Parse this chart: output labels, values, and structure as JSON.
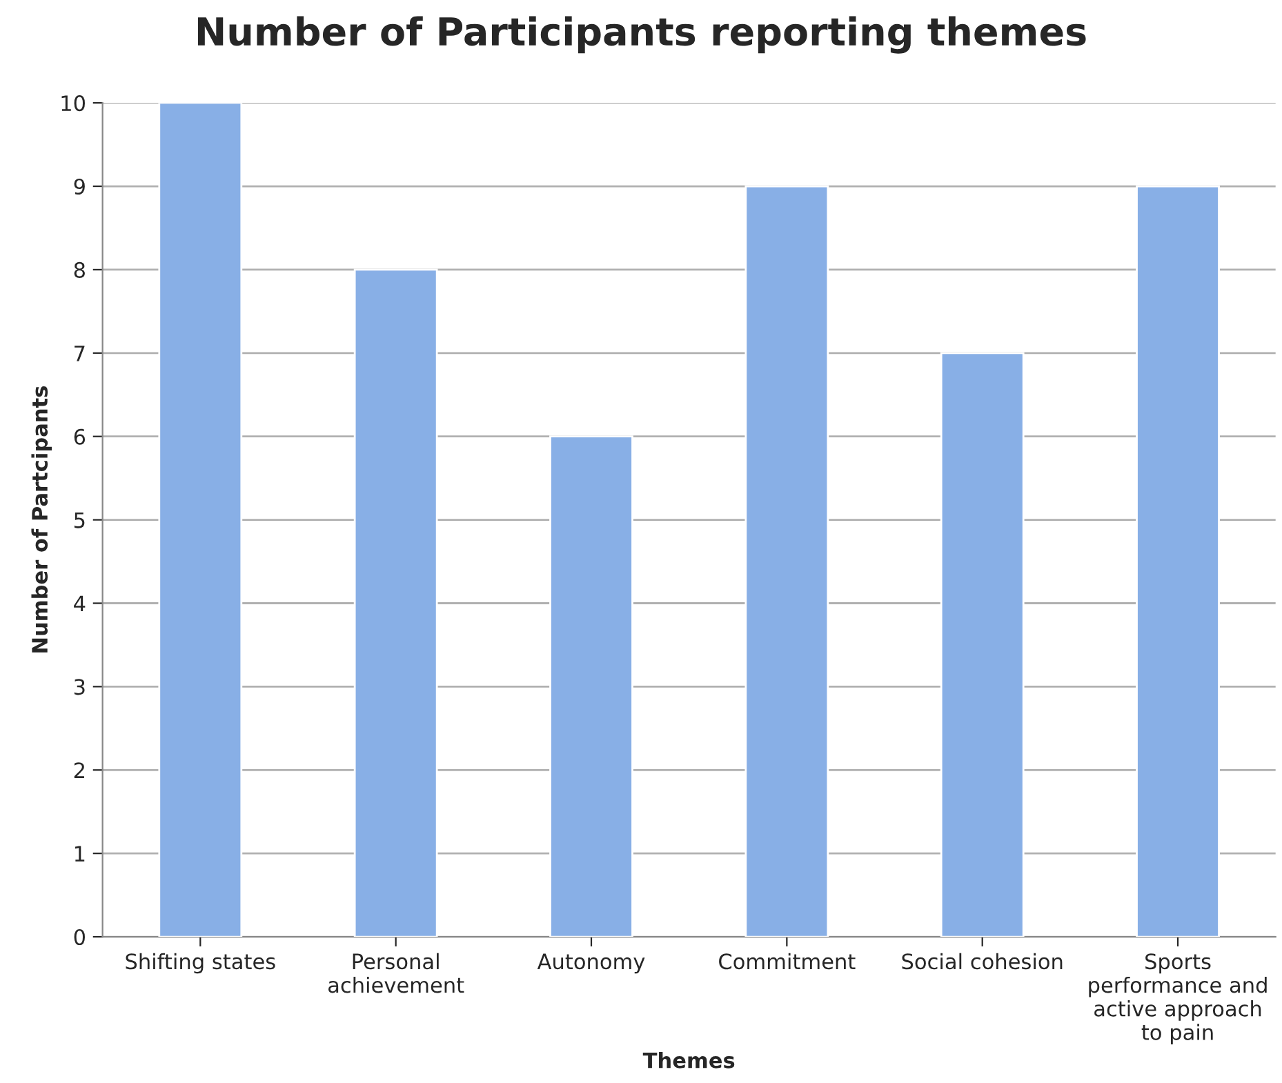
{
  "chart_data": {
    "type": "bar",
    "title": "Number of Participants reporting themes",
    "xlabel": "Themes",
    "ylabel": "Number of Partcipants",
    "categories": [
      "Shifting states",
      "Personal\nachievement",
      "Autonomy",
      "Commitment",
      "Social cohesion",
      "Sports\nperformance and\nactive approach\nto pain"
    ],
    "values": [
      10,
      8,
      6,
      9,
      7,
      9
    ],
    "color": "#88afe6",
    "ylim": [
      0,
      10
    ],
    "yticks": [
      0,
      1,
      2,
      3,
      4,
      5,
      6,
      7,
      8,
      9,
      10
    ],
    "grid": "y"
  }
}
